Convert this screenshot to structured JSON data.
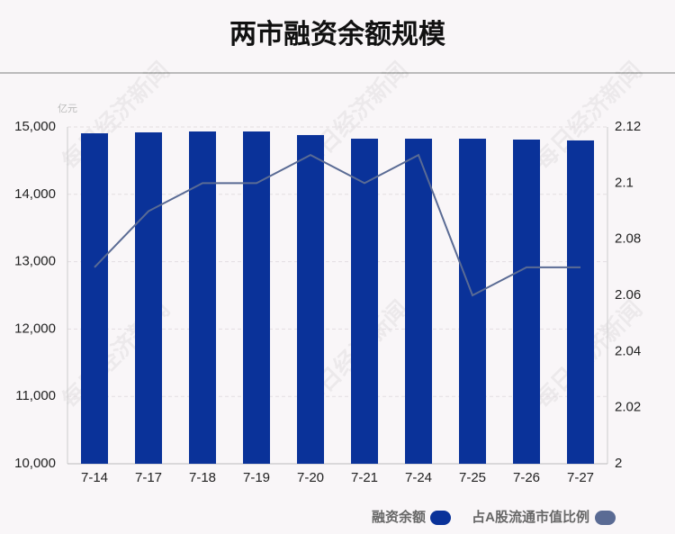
{
  "chart_data": {
    "type": "bar_line",
    "title": "两市融资余额规模",
    "y_label": "亿元",
    "watermark": "每日经济新闻",
    "categories": [
      "7-14",
      "7-17",
      "7-18",
      "7-19",
      "7-20",
      "7-21",
      "7-24",
      "7-25",
      "7-26",
      "7-27"
    ],
    "series": [
      {
        "name": "融资余额",
        "type": "bar",
        "color": "#0a3299",
        "values": [
          14906,
          14920,
          14933,
          14933,
          14880,
          14826,
          14826,
          14826,
          14813,
          14800
        ]
      },
      {
        "name": "占A股流通市值比例",
        "type": "line",
        "axis": "y2",
        "color": "#5a6b94",
        "values": [
          2.07,
          2.09,
          2.1,
          2.1,
          2.11,
          2.1,
          2.11,
          2.06,
          2.07,
          2.07
        ]
      }
    ],
    "ylim": [
      10000,
      15000
    ],
    "yticks": [
      {
        "value": 10000,
        "label": "10,000"
      },
      {
        "value": 11000,
        "label": "11,000"
      },
      {
        "value": 12000,
        "label": "12,000"
      },
      {
        "value": 13000,
        "label": "13,000"
      },
      {
        "value": 14000,
        "label": "14,000"
      },
      {
        "value": 15000,
        "label": "15,000"
      }
    ],
    "y2lim": [
      2,
      2.12
    ],
    "y2ticks": [
      2,
      2.02,
      2.04,
      2.06,
      2.08,
      2.1,
      2.12
    ],
    "grid": true
  }
}
